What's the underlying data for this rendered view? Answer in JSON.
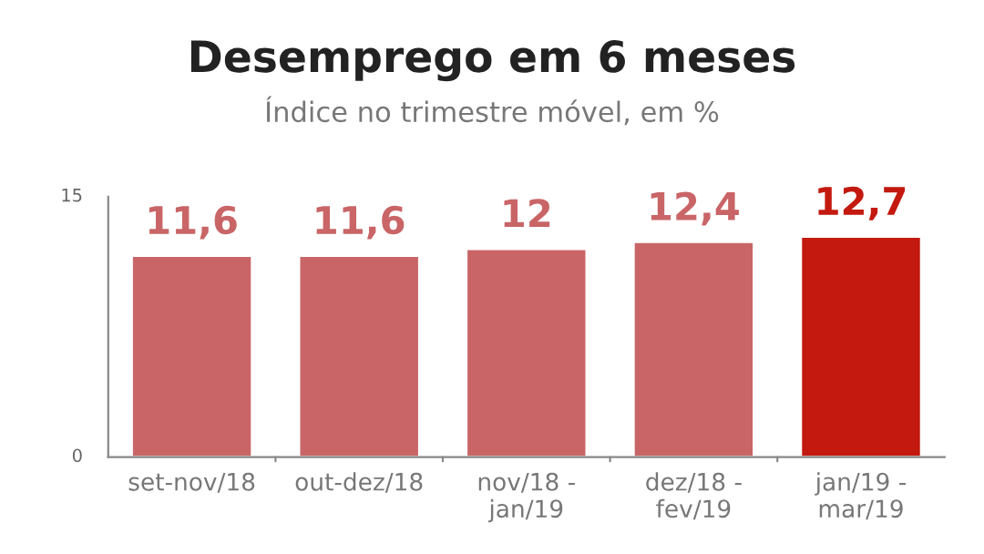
{
  "chart_data": {
    "type": "bar",
    "title": "Desemprego em 6 meses",
    "subtitle": "Índice no trimestre móvel, em %",
    "categories": [
      "set-nov/18",
      "out-dez/18",
      "nov/18 -\njan/19",
      "dez/18 -\nfev/19",
      "jan/19 -\nmar/19"
    ],
    "values": [
      11.6,
      11.6,
      12,
      12.4,
      12.7
    ],
    "colors": [
      "#c96567",
      "#c96567",
      "#c96567",
      "#c96567",
      "#c3190f"
    ],
    "value_labels": [
      "11,6",
      "11,6",
      "12",
      "12,4",
      "12,7"
    ],
    "ylim": [
      0,
      15
    ],
    "yticks": [
      0,
      15
    ],
    "grid": false
  }
}
